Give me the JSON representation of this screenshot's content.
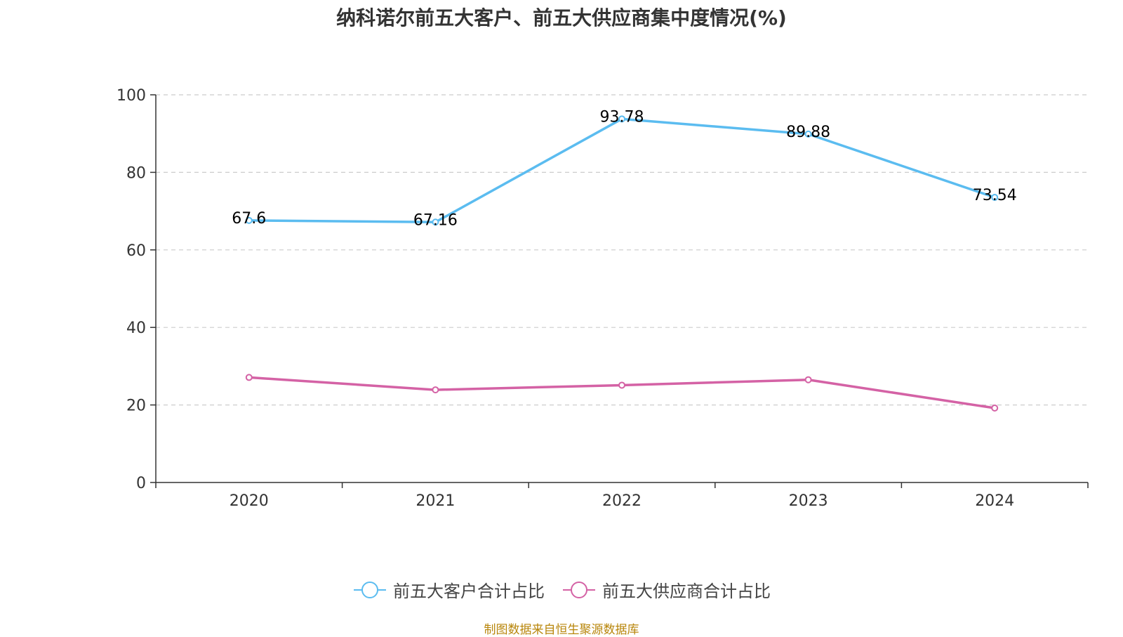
{
  "chart_data": {
    "type": "line",
    "title": "纳科诺尔前五大客户、前五大供应商集中度情况(%)",
    "categories": [
      "2020",
      "2021",
      "2022",
      "2023",
      "2024"
    ],
    "ylim": [
      0,
      100
    ],
    "yticks": [
      0,
      20,
      40,
      60,
      80,
      100
    ],
    "grid": true,
    "legend_position": "bottom",
    "series": [
      {
        "name": "前五大客户合计占比",
        "color": "#5bbcf0",
        "values": [
          67.6,
          67.16,
          93.78,
          89.88,
          73.54
        ],
        "labels": [
          "67.6",
          "67.16",
          "93.78",
          "89.88",
          "73.54"
        ],
        "show_labels": true
      },
      {
        "name": "前五大供应商合计占比",
        "color": "#d462a5",
        "values": [
          27.1,
          23.9,
          25.1,
          26.5,
          19.2
        ],
        "show_labels": false
      }
    ]
  },
  "source": "制图数据来自恒生聚源数据库"
}
